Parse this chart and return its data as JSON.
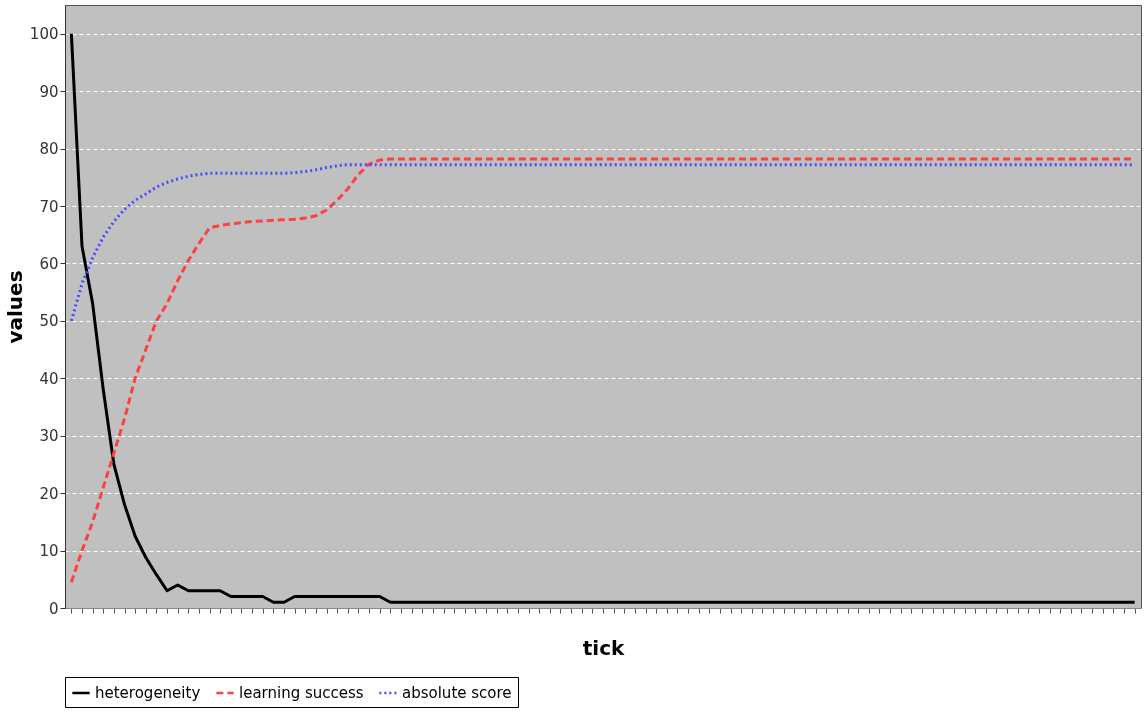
{
  "chart_data": {
    "type": "line",
    "xlabel": "tick",
    "ylabel": "values",
    "categories": [
      null,
      null,
      null,
      null,
      null,
      null,
      null,
      null,
      null,
      null,
      null,
      null,
      null,
      null,
      null,
      null,
      null,
      null,
      null,
      null,
      null,
      null,
      null,
      null,
      null,
      null,
      null,
      null,
      null,
      null,
      null,
      null,
      null,
      null,
      null,
      null,
      null,
      null,
      null,
      null,
      null,
      null,
      null,
      null,
      null,
      null,
      null,
      null,
      null,
      null,
      null,
      null,
      null,
      null,
      null,
      null,
      null,
      null,
      null,
      null,
      null,
      null,
      null,
      null,
      null,
      null,
      null,
      null,
      null,
      null,
      null,
      null,
      null,
      null,
      null,
      null,
      null,
      null,
      null,
      null,
      null,
      null,
      null,
      null,
      null,
      null,
      null,
      null,
      null,
      null,
      null,
      null,
      null,
      null,
      null,
      null,
      null,
      null,
      null,
      null,
      null
    ],
    "ylim": [
      0,
      105
    ],
    "yticks": [
      0,
      10,
      20,
      30,
      40,
      50,
      60,
      70,
      80,
      90,
      100
    ],
    "grid": "y",
    "legend": "bottom left",
    "tick_labels": "y",
    "marker": "none",
    "series": [
      {
        "name": "heterogeneity",
        "color": "#000000",
        "line_style": "solid",
        "values": [
          100,
          63,
          53,
          38,
          25,
          18,
          12.5,
          8.8,
          5.8,
          3,
          4,
          3,
          3,
          3,
          3,
          2,
          2,
          2,
          2,
          1,
          1,
          2,
          2,
          2,
          2,
          2,
          2,
          2,
          2,
          2,
          1,
          1,
          1,
          1,
          1,
          1,
          1,
          1,
          1,
          1,
          1,
          1,
          1,
          1,
          1,
          1,
          1,
          1,
          1,
          1,
          1,
          1,
          1,
          1,
          1,
          1,
          1,
          1,
          1,
          1,
          1,
          1,
          1,
          1,
          1,
          1,
          1,
          1,
          1,
          1,
          1,
          1,
          1,
          1,
          1,
          1,
          1,
          1,
          1,
          1,
          1,
          1,
          1,
          1,
          1,
          1,
          1,
          1,
          1,
          1,
          1,
          1,
          1,
          1,
          1,
          1,
          1,
          1,
          1,
          1,
          1
        ]
      },
      {
        "name": "learning success",
        "color": "#ff4040",
        "line_style": "dashed",
        "values": [
          4.5,
          10,
          15,
          21,
          27,
          33,
          40,
          45,
          50,
          53,
          57,
          60.5,
          63.5,
          66.2,
          66.6,
          66.9,
          67.1,
          67.3,
          67.4,
          67.5,
          67.6,
          67.7,
          67.9,
          68.3,
          69.3,
          71,
          73,
          75.5,
          77.3,
          78,
          78.2,
          78.2,
          78.2,
          78.2,
          78.2,
          78.2,
          78.2,
          78.2,
          78.2,
          78.2,
          78.2,
          78.2,
          78.2,
          78.2,
          78.2,
          78.2,
          78.2,
          78.2,
          78.2,
          78.2,
          78.2,
          78.2,
          78.2,
          78.2,
          78.2,
          78.2,
          78.2,
          78.2,
          78.2,
          78.2,
          78.2,
          78.2,
          78.2,
          78.2,
          78.2,
          78.2,
          78.2,
          78.2,
          78.2,
          78.2,
          78.2,
          78.2,
          78.2,
          78.2,
          78.2,
          78.2,
          78.2,
          78.2,
          78.2,
          78.2,
          78.2,
          78.2,
          78.2,
          78.2,
          78.2,
          78.2,
          78.2,
          78.2,
          78.2,
          78.2,
          78.2,
          78.2,
          78.2,
          78.2,
          78.2,
          78.2,
          78.2,
          78.2,
          78.2,
          78.2,
          78.2
        ]
      },
      {
        "name": "absolute score",
        "color": "#4a4aff",
        "line_style": "dotted",
        "values": [
          50,
          56.5,
          61,
          64.6,
          67.3,
          69.4,
          71,
          72.1,
          73.3,
          74.1,
          74.7,
          75.2,
          75.5,
          75.7,
          75.7,
          75.7,
          75.7,
          75.7,
          75.7,
          75.7,
          75.7,
          75.8,
          76,
          76.3,
          76.7,
          77,
          77.2,
          77.2,
          77.2,
          77.2,
          77.2,
          77.2,
          77.2,
          77.2,
          77.2,
          77.2,
          77.2,
          77.2,
          77.2,
          77.2,
          77.2,
          77.2,
          77.2,
          77.2,
          77.2,
          77.2,
          77.2,
          77.2,
          77.2,
          77.2,
          77.2,
          77.2,
          77.2,
          77.2,
          77.2,
          77.2,
          77.2,
          77.2,
          77.2,
          77.2,
          77.2,
          77.2,
          77.2,
          77.2,
          77.2,
          77.2,
          77.2,
          77.2,
          77.2,
          77.2,
          77.2,
          77.2,
          77.2,
          77.2,
          77.2,
          77.2,
          77.2,
          77.2,
          77.2,
          77.2,
          77.2,
          77.2,
          77.2,
          77.2,
          77.2,
          77.2,
          77.2,
          77.2,
          77.2,
          77.2,
          77.2,
          77.2,
          77.2,
          77.2,
          77.2,
          77.2,
          77.2,
          77.2,
          77.2,
          77.2,
          77.2
        ]
      }
    ]
  }
}
